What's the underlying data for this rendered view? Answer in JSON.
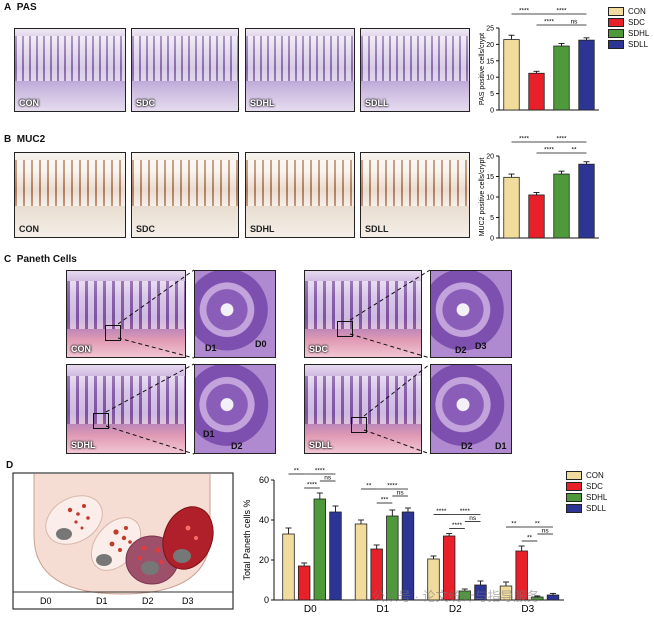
{
  "panels": {
    "A": {
      "letter": "A",
      "title": "PAS"
    },
    "B": {
      "letter": "B",
      "title": "MUC2"
    },
    "C": {
      "letter": "C",
      "title": "Paneth Cells"
    },
    "D": {
      "letter": "D"
    }
  },
  "groups": [
    "CON",
    "SDC",
    "SDHL",
    "SDLL"
  ],
  "colors": {
    "CON": "#f2dc9d",
    "SDC": "#e8202a",
    "SDHL": "#4e9a3a",
    "SDLL": "#2c3594"
  },
  "panelC_labels": {
    "con": [
      "D1",
      "D0"
    ],
    "sdc": [
      "D2",
      "D3"
    ],
    "sdhl": [
      "D1",
      "D2"
    ],
    "sdll": [
      "D2",
      "D1"
    ]
  },
  "schematic": {
    "labels": [
      "D0",
      "D1",
      "D2",
      "D3"
    ]
  },
  "watermark": "公众号 · 论文统计与指导服务",
  "chart_data": [
    {
      "id": "pas",
      "type": "bar",
      "categories": [
        "CON",
        "SDC",
        "SDHL",
        "SDLL"
      ],
      "values": [
        21.5,
        11.2,
        19.5,
        21.3
      ],
      "errors": [
        1.3,
        0.6,
        0.8,
        0.7
      ],
      "ylabel": "PAS positive cells/crypt",
      "ylim": [
        0,
        25
      ],
      "yticks": [
        "0",
        "5",
        "10",
        "15",
        "20",
        "25"
      ],
      "significance": [
        {
          "a": 0,
          "b": 1,
          "label": "****",
          "level": 0
        },
        {
          "a": 1,
          "b": 2,
          "label": "****",
          "level": 1
        },
        {
          "a": 1,
          "b": 3,
          "label": "****",
          "level": 0
        },
        {
          "a": 2,
          "b": 3,
          "label": "ns",
          "level": 1
        }
      ]
    },
    {
      "id": "muc2",
      "type": "bar",
      "categories": [
        "CON",
        "SDC",
        "SDHL",
        "SDLL"
      ],
      "values": [
        14.8,
        10.5,
        15.6,
        18.0
      ],
      "errors": [
        0.8,
        0.6,
        0.7,
        0.6
      ],
      "ylabel": "MUC2 positive cells/crypt",
      "ylim": [
        0,
        20
      ],
      "yticks": [
        "0",
        "5",
        "10",
        "15",
        "20"
      ],
      "significance": [
        {
          "a": 0,
          "b": 1,
          "label": "****",
          "level": 0
        },
        {
          "a": 1,
          "b": 2,
          "label": "****",
          "level": 1
        },
        {
          "a": 1,
          "b": 3,
          "label": "****",
          "level": 0
        },
        {
          "a": 2,
          "b": 3,
          "label": "**",
          "level": 1
        }
      ]
    },
    {
      "id": "paneth",
      "type": "bar",
      "categories": [
        "D0",
        "D1",
        "D2",
        "D3"
      ],
      "series": [
        {
          "name": "CON",
          "values": [
            33,
            38,
            20.5,
            7
          ],
          "errors": [
            3,
            2,
            1.5,
            2
          ]
        },
        {
          "name": "SDC",
          "values": [
            17,
            25.5,
            32,
            24.5
          ],
          "errors": [
            1.5,
            2,
            1.2,
            2.5
          ]
        },
        {
          "name": "SDHL",
          "values": [
            50.5,
            42,
            4.5,
            1.5
          ],
          "errors": [
            3,
            3,
            1,
            0.5
          ]
        },
        {
          "name": "SDLL",
          "values": [
            44,
            44,
            7.5,
            2.5
          ],
          "errors": [
            3,
            2,
            2,
            0.8
          ]
        }
      ],
      "ylabel": "Total Paneth cells %",
      "ylim": [
        0,
        60
      ],
      "yticks": [
        "0",
        "20",
        "40",
        "60"
      ],
      "significance": [
        {
          "group": 0,
          "a": 0,
          "b": 1,
          "label": "**",
          "level": 2
        },
        {
          "group": 0,
          "a": 1,
          "b": 2,
          "label": "****",
          "level": 0
        },
        {
          "group": 0,
          "a": 1,
          "b": 3,
          "label": "****",
          "level": 2
        },
        {
          "group": 0,
          "a": 2,
          "b": 3,
          "label": "ns",
          "level": 1
        },
        {
          "group": 1,
          "a": 0,
          "b": 1,
          "label": "**",
          "level": 2
        },
        {
          "group": 1,
          "a": 1,
          "b": 2,
          "label": "***",
          "level": 0
        },
        {
          "group": 1,
          "a": 1,
          "b": 3,
          "label": "****",
          "level": 2
        },
        {
          "group": 1,
          "a": 2,
          "b": 3,
          "label": "ns",
          "level": 1
        },
        {
          "group": 2,
          "a": 0,
          "b": 1,
          "label": "****",
          "level": 2
        },
        {
          "group": 2,
          "a": 1,
          "b": 2,
          "label": "****",
          "level": 0
        },
        {
          "group": 2,
          "a": 1,
          "b": 3,
          "label": "****",
          "level": 2
        },
        {
          "group": 2,
          "a": 2,
          "b": 3,
          "label": "ns",
          "level": 1
        },
        {
          "group": 3,
          "a": 0,
          "b": 1,
          "label": "**",
          "level": 2
        },
        {
          "group": 3,
          "a": 1,
          "b": 2,
          "label": "**",
          "level": 0
        },
        {
          "group": 3,
          "a": 1,
          "b": 3,
          "label": "**",
          "level": 2
        },
        {
          "group": 3,
          "a": 2,
          "b": 3,
          "label": "ns",
          "level": 1
        }
      ]
    }
  ]
}
